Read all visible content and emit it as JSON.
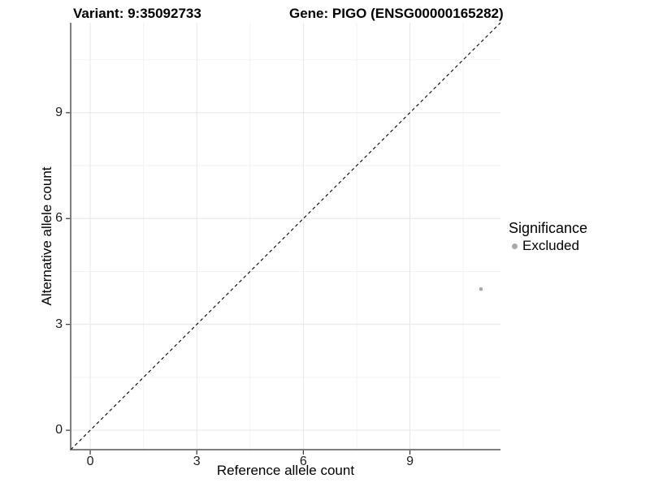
{
  "title": {
    "variant": "Variant: 9:35092733",
    "gene": "Gene: PIGO (ENSG00000165282)"
  },
  "axes": {
    "x_label": "Reference allele count",
    "y_label": "Alternative allele count"
  },
  "legend": {
    "title": "Significance",
    "items": [
      {
        "label": "Excluded",
        "color": "#a9a9a9"
      }
    ]
  },
  "chart_data": {
    "type": "scatter",
    "title": "Variant: 9:35092733 / Gene: PIGO (ENSG00000165282)",
    "xlabel": "Reference allele count",
    "ylabel": "Alternative allele count",
    "xlim": [
      -0.55,
      11.55
    ],
    "ylim": [
      -0.55,
      11.55
    ],
    "x_ticks": [
      0,
      3,
      6,
      9
    ],
    "y_ticks": [
      0,
      3,
      6,
      9
    ],
    "x_minor_ticks": [
      1.5,
      4.5,
      7.5,
      10.5
    ],
    "y_minor_ticks": [
      1.5,
      4.5,
      7.5,
      10.5
    ],
    "grid": true,
    "legend_position": "right",
    "series": [
      {
        "name": "Excluded",
        "color": "#a9a9a9",
        "points": [
          {
            "x": 11,
            "y": 4
          }
        ]
      }
    ],
    "reference_line": {
      "type": "identity y=x",
      "from": [
        -0.55,
        -0.55
      ],
      "to": [
        11.55,
        11.55
      ],
      "style": "dashed",
      "color": "#000000"
    }
  },
  "colors": {
    "background": "#ffffff",
    "grid_major": "#e6e6e6",
    "grid_minor": "#f2f2f2",
    "axis_line": "#555555",
    "tick_mark": "#333333",
    "point": "#a9a9a9",
    "text": "#000000"
  }
}
